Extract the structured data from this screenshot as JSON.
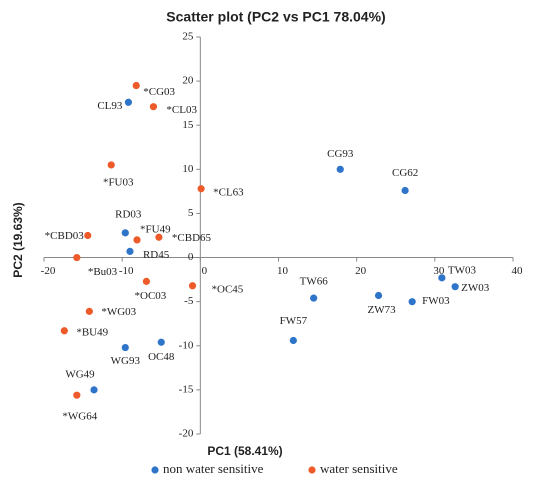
{
  "chart_data": {
    "type": "scatter",
    "title": "Scatter plot (PC2 vs PC1 78.04%)",
    "x_label": "PC1 (58.41%)",
    "y_label": "PC2 (19.63%)",
    "xlim": [
      -20,
      40
    ],
    "ylim": [
      -20,
      25
    ],
    "xticks": [
      -20,
      -10,
      0,
      10,
      20,
      30,
      40
    ],
    "yticks": [
      -20,
      -15,
      -10,
      -5,
      0,
      5,
      10,
      15,
      20,
      25
    ],
    "series": [
      {
        "name": "non water sensitive",
        "color": "#2e75c9",
        "labels": [
          "CL93",
          "RD03",
          "RD45",
          "CG93",
          "CG62",
          "TW66",
          "FW57",
          "ZW73",
          "FW03",
          "TW03",
          "ZW03",
          "WG93",
          "OC48",
          "WG49"
        ],
        "x": [
          -9.2,
          -9.6,
          -9.0,
          17.9,
          26.2,
          14.5,
          11.9,
          22.8,
          27.1,
          30.9,
          32.6,
          -9.6,
          -5.0,
          -13.6
        ],
        "values": [
          17.6,
          2.8,
          0.7,
          10.0,
          7.6,
          -4.6,
          -9.4,
          -4.3,
          -5.0,
          -2.3,
          -3.3,
          -10.2,
          -9.6,
          -15.0
        ]
      },
      {
        "name": "water sensitive",
        "color": "#ee5a2a",
        "labels": [
          "*CG03",
          "*CL03",
          "*FU03",
          "*CL63",
          "*CBD03",
          "*Bu03",
          "*FU49",
          "*CBD65",
          "*OC03",
          "*OC45",
          "*WG03",
          "*BU49",
          "*WG64"
        ],
        "x": [
          -8.2,
          -6.0,
          -11.4,
          0.1,
          -14.4,
          -15.8,
          -8.1,
          -5.3,
          -6.9,
          -1.0,
          -14.2,
          -17.4,
          -15.8
        ],
        "values": [
          19.5,
          17.1,
          10.5,
          7.8,
          2.5,
          0.0,
          2.0,
          2.3,
          -2.7,
          -3.2,
          -6.1,
          -8.3,
          -15.6
        ]
      }
    ]
  }
}
